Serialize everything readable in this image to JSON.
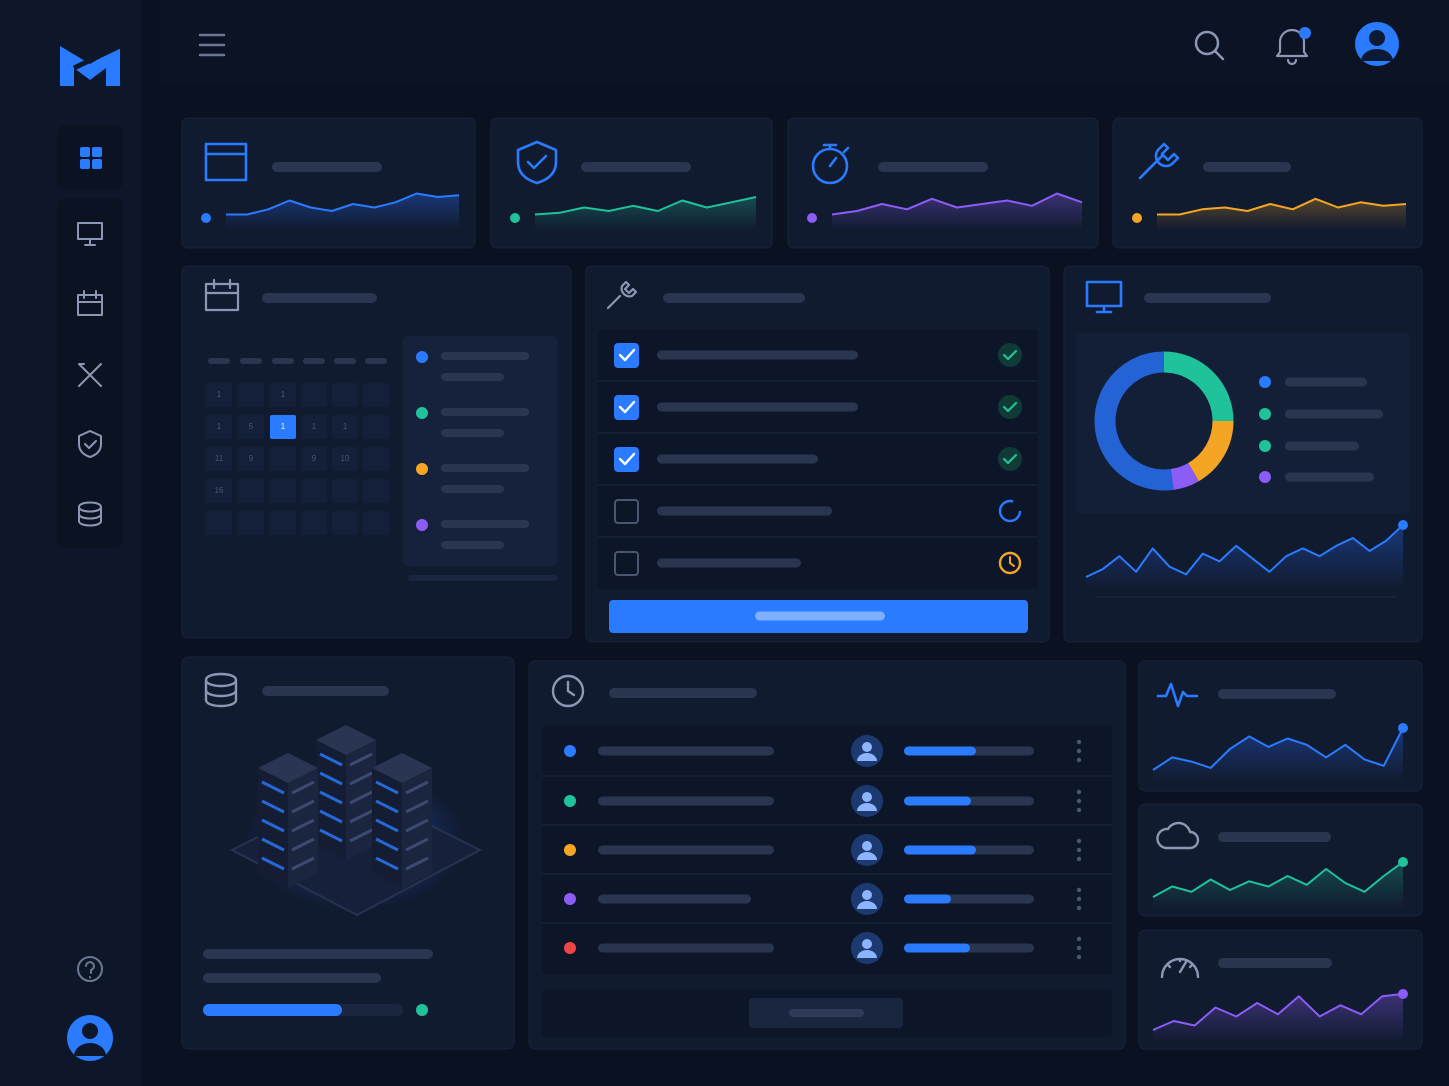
{
  "calendar": {
    "days": [
      "1",
      "1",
      "1",
      "5",
      "1",
      "1",
      "1",
      "11",
      "9",
      "9",
      "10",
      "16"
    ]
  }
}
